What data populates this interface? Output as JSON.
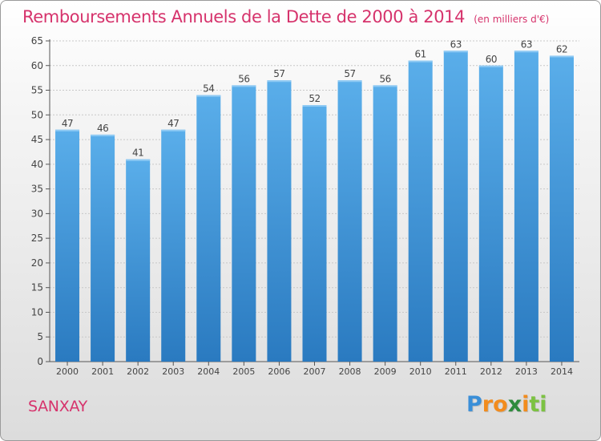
{
  "chart_data": {
    "type": "bar",
    "title": "Remboursements Annuels de la Dette de 2000 à 2014",
    "unit_label": "(en milliers d'€)",
    "categories": [
      "2000",
      "2001",
      "2002",
      "2003",
      "2004",
      "2005",
      "2006",
      "2007",
      "2008",
      "2009",
      "2010",
      "2011",
      "2012",
      "2013",
      "2014"
    ],
    "values": [
      47,
      46,
      41,
      47,
      54,
      56,
      57,
      52,
      57,
      56,
      61,
      63,
      60,
      63,
      62
    ],
    "ylim": [
      0,
      65
    ],
    "yticks": [
      0,
      5,
      10,
      15,
      20,
      25,
      30,
      35,
      40,
      45,
      50,
      55,
      60,
      65
    ],
    "grid": true,
    "bar_color_top": "#5aaeea",
    "bar_color_bottom": "#2a7ac0"
  },
  "commune": "SANXAY",
  "brand": {
    "letters": [
      "P",
      "r",
      "o",
      "x",
      "i",
      "t",
      "i"
    ],
    "colors": [
      "#3a8fd8",
      "#f28c1e",
      "#f28c1e",
      "#2e8b3d",
      "#f28c1e",
      "#7cc242",
      "#7cc242"
    ]
  }
}
